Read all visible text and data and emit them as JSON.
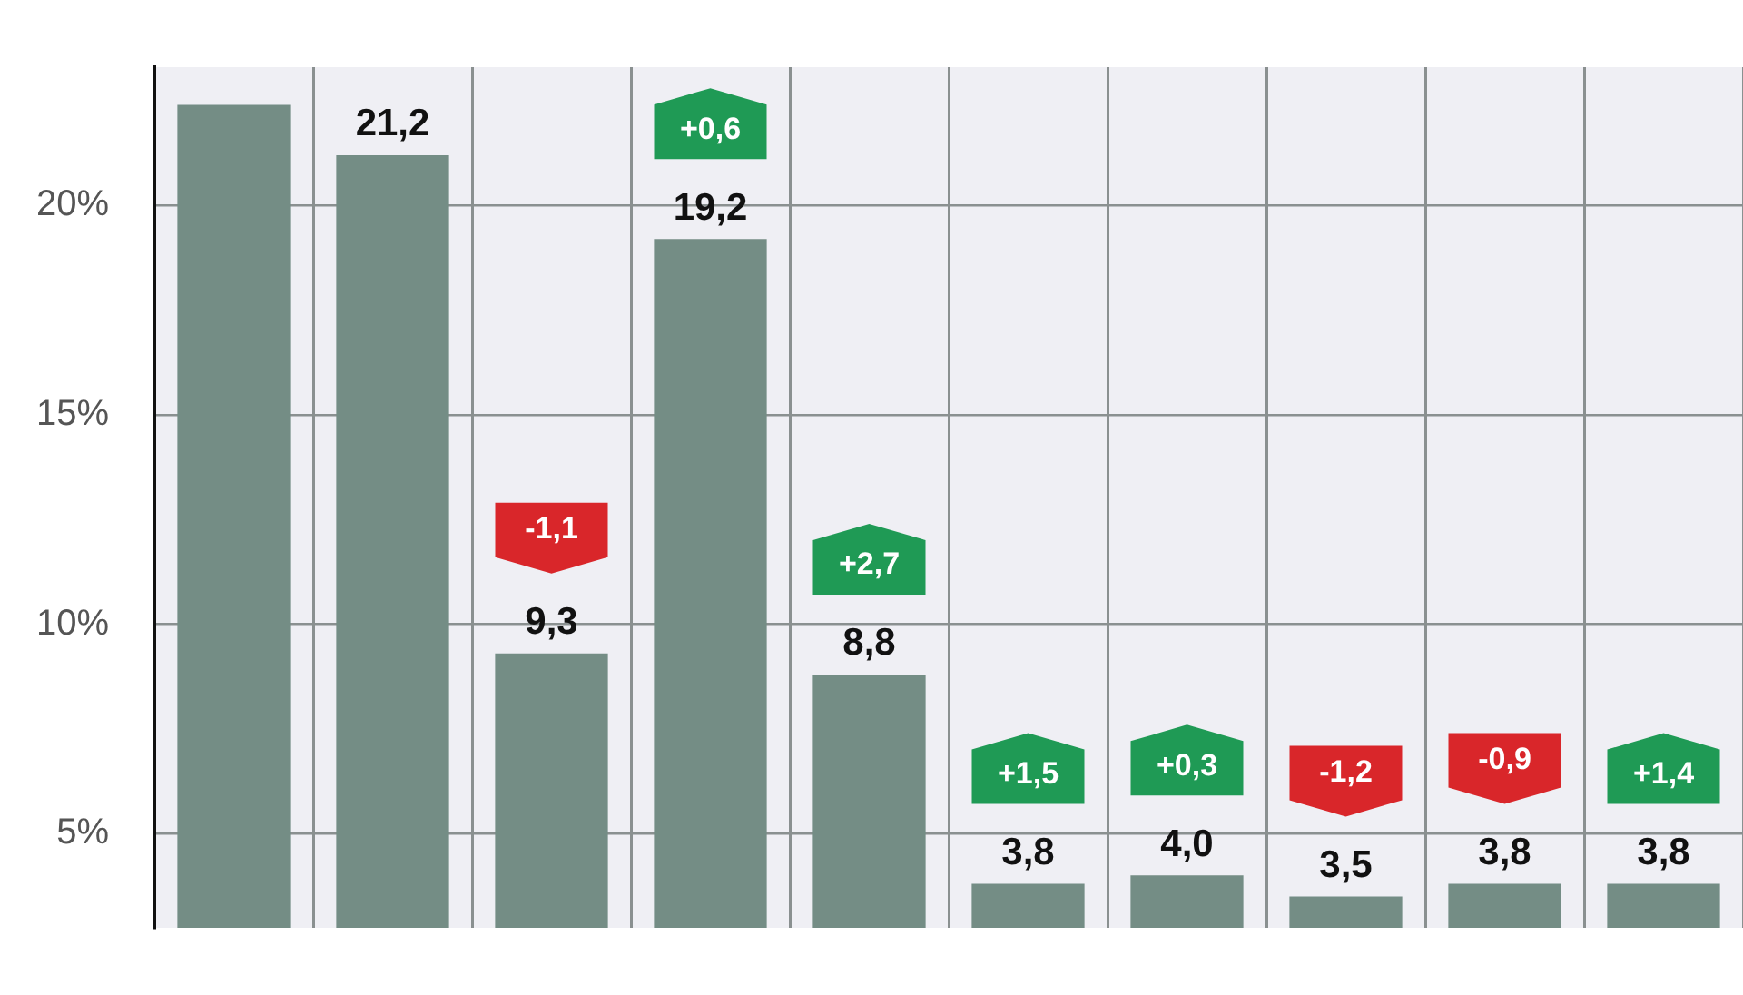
{
  "chart_data": {
    "type": "bar",
    "categories": [
      null,
      null,
      null,
      null,
      null,
      null,
      null,
      null,
      null,
      null
    ],
    "values": [
      22.4,
      21.2,
      9.3,
      19.2,
      8.8,
      3.8,
      4.0,
      3.5,
      3.8,
      3.8
    ],
    "value_labels": [
      null,
      "21,2",
      "9,3",
      "19,2",
      "8,8",
      "3,8",
      "4,0",
      "3,5",
      "3,8",
      "3,8"
    ],
    "color": "#748d85",
    "ylim": [
      2.75,
      23.3
    ],
    "yticks": [
      {
        "value": 5,
        "label": "5%"
      },
      {
        "value": 10,
        "label": "10%"
      },
      {
        "value": 15,
        "label": "15%"
      },
      {
        "value": 20,
        "label": "20%"
      }
    ],
    "annotations": [
      "-1,1",
      "+0,6",
      "+2,7",
      "+1,5",
      "+0,3",
      "-1,2",
      "-0,9",
      "+1,4"
    ],
    "grid": true,
    "tick_labels": "y",
    "legend": false
  }
}
